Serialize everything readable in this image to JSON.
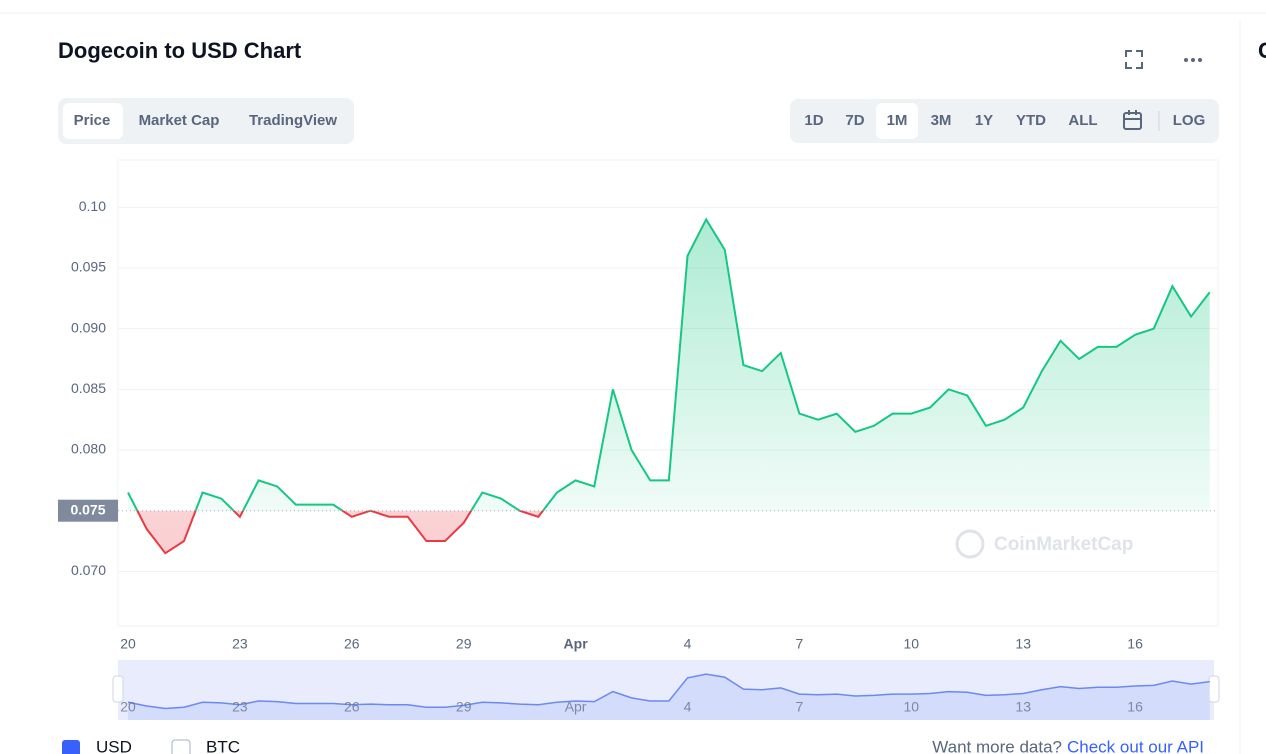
{
  "header": {
    "title": "Dogecoin to USD Chart",
    "side_panel_title": "C"
  },
  "tabs": [
    "Price",
    "Market Cap",
    "TradingView"
  ],
  "ranges": [
    "1D",
    "7D",
    "1M",
    "3M",
    "1Y",
    "YTD",
    "ALL"
  ],
  "scale_button": "LOG",
  "watermark": "CoinMarketCap",
  "footer": {
    "currencies": [
      "USD",
      "BTC"
    ],
    "prompt": "Want more data?",
    "link": "Check out our API"
  },
  "chart_data": {
    "type": "line",
    "categories": [
      "20",
      null,
      null,
      null,
      null,
      null,
      "23",
      null,
      null,
      null,
      null,
      null,
      "26",
      null,
      null,
      null,
      null,
      null,
      "29",
      null,
      null,
      null,
      null,
      null,
      "Apr",
      null,
      null,
      null,
      null,
      null,
      "4",
      null,
      null,
      null,
      null,
      null,
      "7",
      null,
      null,
      null,
      null,
      null,
      "10",
      null,
      null,
      null,
      null,
      null,
      "13",
      null,
      null,
      null,
      null,
      null,
      "16",
      null,
      null,
      null,
      null
    ],
    "values": [
      0.0765,
      0.0735,
      0.0715,
      0.0725,
      0.0765,
      0.076,
      0.0745,
      0.0775,
      0.077,
      0.0755,
      0.0755,
      0.0755,
      0.0745,
      0.075,
      0.0745,
      0.0745,
      0.0725,
      0.0725,
      0.074,
      0.0765,
      0.076,
      0.075,
      0.0745,
      0.0765,
      0.0775,
      0.077,
      0.085,
      0.08,
      0.0775,
      0.0775,
      0.096,
      0.099,
      0.0965,
      0.087,
      0.0865,
      0.088,
      0.083,
      0.0825,
      0.083,
      0.0815,
      0.082,
      0.083,
      0.083,
      0.0835,
      0.085,
      0.0845,
      0.082,
      0.0825,
      0.0835,
      0.0865,
      0.089,
      0.0875,
      0.0885,
      0.0885,
      0.0895,
      0.09,
      0.0935,
      0.091,
      0.093
    ],
    "up_color": "#16c784",
    "down_color": "#ea3943",
    "reference_line": {
      "value": 0.075,
      "label": "0.075"
    },
    "ylim": [
      0.0655,
      0.1039
    ],
    "yticks": [
      {
        "value": 0.07,
        "label": "0.070"
      },
      {
        "value": 0.08,
        "label": "0.080"
      },
      {
        "value": 0.085,
        "label": "0.085"
      },
      {
        "value": 0.09,
        "label": "0.090"
      },
      {
        "value": 0.095,
        "label": "0.095"
      },
      {
        "value": 0.1,
        "label": "0.10"
      }
    ],
    "grid": true
  }
}
